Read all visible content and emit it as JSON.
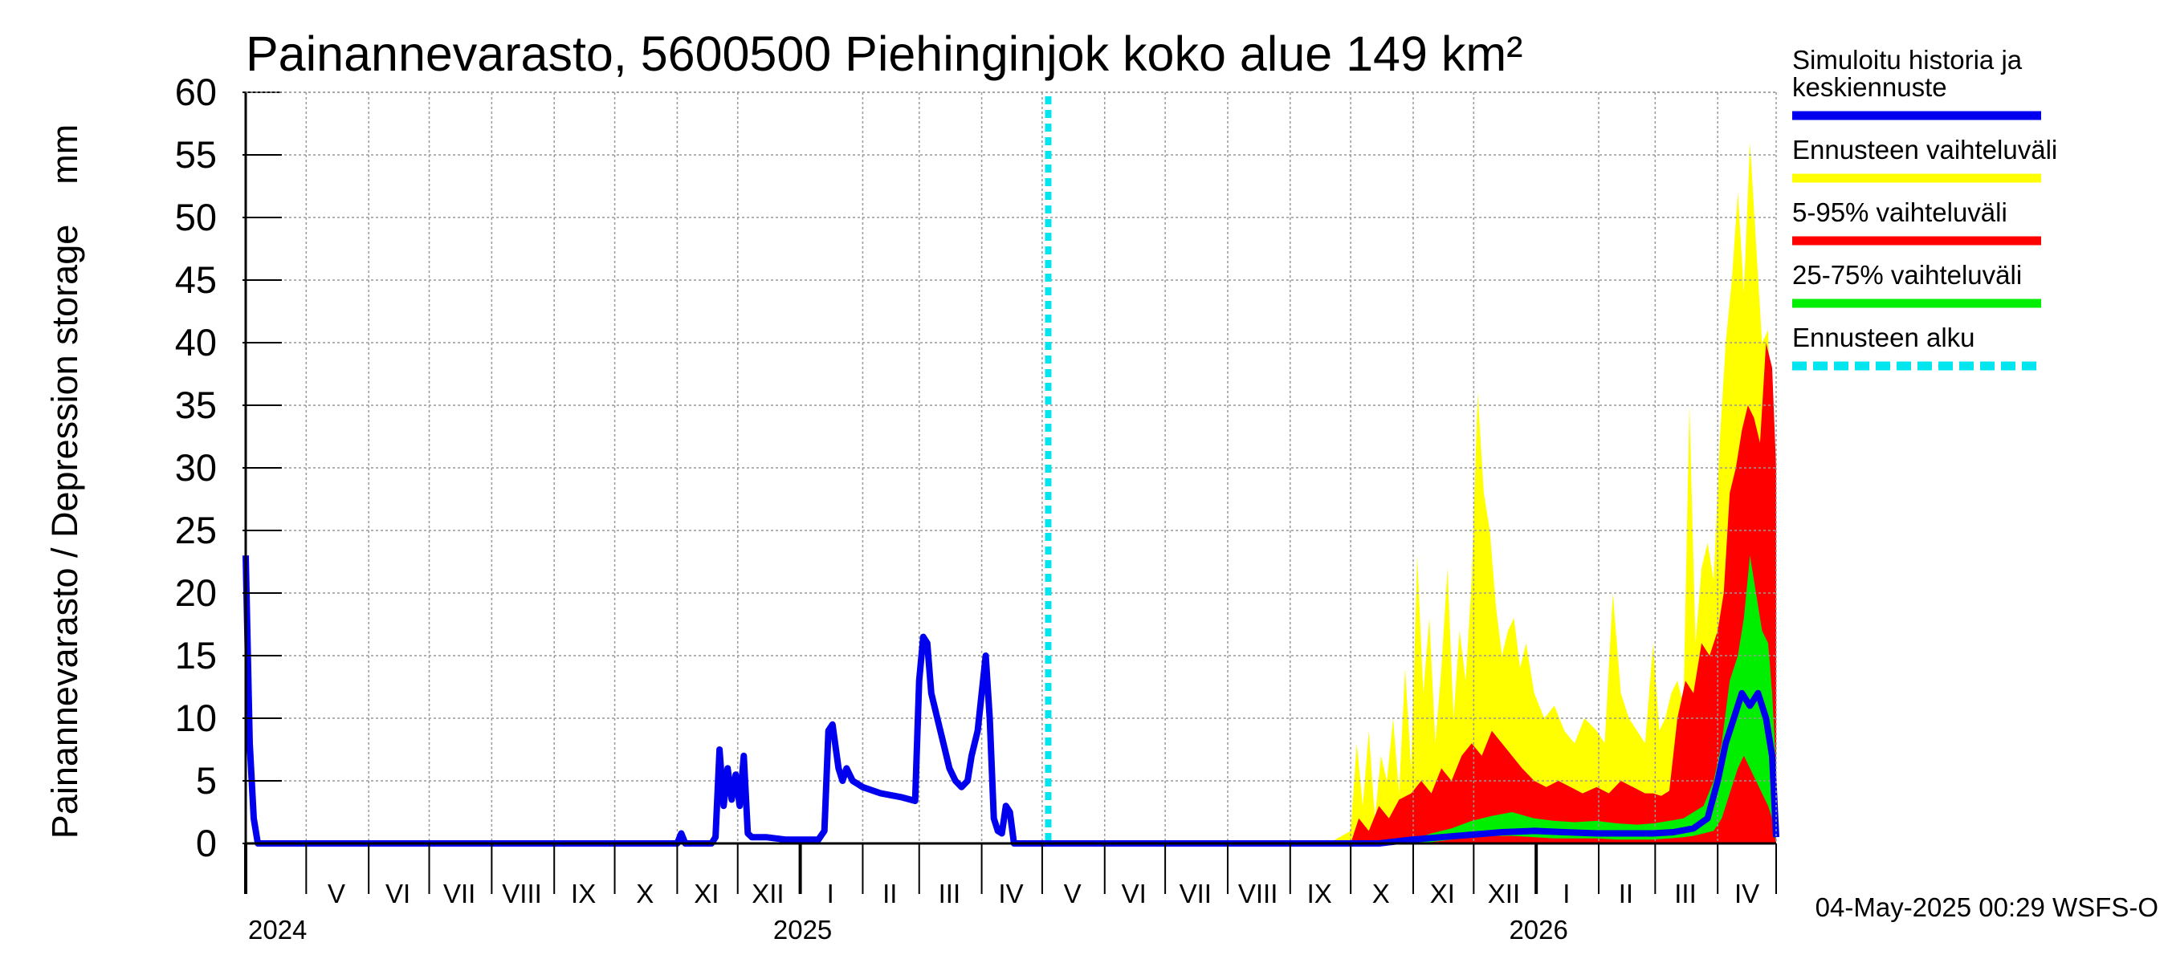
{
  "chart_data": {
    "type": "area",
    "title": "Painannevarasto, 5600500 Piehinginjok koko alue 149 km²",
    "ylabel": "Painannevarasto / Depression storage    mm",
    "ylim": [
      0,
      60
    ],
    "yticks": [
      0,
      5,
      10,
      15,
      20,
      25,
      30,
      35,
      40,
      45,
      50,
      55,
      60
    ],
    "xlim": [
      "2024-04-01",
      "2026-04-30"
    ],
    "grid": true,
    "legend_position": "right",
    "months": [
      {
        "label": "V",
        "start": "2024-05-01",
        "end": "2024-05-31"
      },
      {
        "label": "VI",
        "start": "2024-06-01",
        "end": "2024-06-30"
      },
      {
        "label": "VII",
        "start": "2024-07-01",
        "end": "2024-07-31"
      },
      {
        "label": "VIII",
        "start": "2024-08-01",
        "end": "2024-08-31"
      },
      {
        "label": "IX",
        "start": "2024-09-01",
        "end": "2024-09-30"
      },
      {
        "label": "X",
        "start": "2024-10-01",
        "end": "2024-10-31"
      },
      {
        "label": "XI",
        "start": "2024-11-01",
        "end": "2024-11-30"
      },
      {
        "label": "XII",
        "start": "2024-12-01",
        "end": "2024-12-31"
      },
      {
        "label": "I",
        "start": "2025-01-01",
        "end": "2025-01-31"
      },
      {
        "label": "II",
        "start": "2025-02-01",
        "end": "2025-02-28"
      },
      {
        "label": "III",
        "start": "2025-03-01",
        "end": "2025-03-31"
      },
      {
        "label": "IV",
        "start": "2025-04-01",
        "end": "2025-04-30"
      },
      {
        "label": "V",
        "start": "2025-05-01",
        "end": "2025-05-31"
      },
      {
        "label": "VI",
        "start": "2025-06-01",
        "end": "2025-06-30"
      },
      {
        "label": "VII",
        "start": "2025-07-01",
        "end": "2025-07-31"
      },
      {
        "label": "VIII",
        "start": "2025-08-01",
        "end": "2025-08-31"
      },
      {
        "label": "IX",
        "start": "2025-09-01",
        "end": "2025-09-30"
      },
      {
        "label": "X",
        "start": "2025-10-01",
        "end": "2025-10-31"
      },
      {
        "label": "XI",
        "start": "2025-11-01",
        "end": "2025-11-30"
      },
      {
        "label": "XII",
        "start": "2025-12-01",
        "end": "2025-12-31"
      },
      {
        "label": "I",
        "start": "2026-01-01",
        "end": "2026-01-31"
      },
      {
        "label": "II",
        "start": "2026-02-01",
        "end": "2026-02-28"
      },
      {
        "label": "III",
        "start": "2026-03-01",
        "end": "2026-03-31"
      },
      {
        "label": "IV",
        "start": "2026-04-01",
        "end": "2026-04-30"
      }
    ],
    "years": [
      {
        "label": "2024",
        "date": "2024-04-01"
      },
      {
        "label": "2025",
        "date": "2025-01-01"
      },
      {
        "label": "2026",
        "date": "2026-01-01"
      }
    ],
    "forecast_start": "2025-05-04",
    "series": [
      {
        "name": "Ennusteen vaihteluväli",
        "kind": "band",
        "color": "#ffff00",
        "x": [
          "2025-09-20",
          "2025-10-01",
          "2025-10-04",
          "2025-10-07",
          "2025-10-10",
          "2025-10-13",
          "2025-10-16",
          "2025-10-19",
          "2025-10-22",
          "2025-10-25",
          "2025-10-28",
          "2025-10-31",
          "2025-11-03",
          "2025-11-06",
          "2025-11-09",
          "2025-11-12",
          "2025-11-15",
          "2025-11-18",
          "2025-11-21",
          "2025-11-24",
          "2025-11-27",
          "2025-11-30",
          "2025-12-03",
          "2025-12-06",
          "2025-12-09",
          "2025-12-12",
          "2025-12-15",
          "2025-12-18",
          "2025-12-21",
          "2025-12-24",
          "2025-12-27",
          "2025-12-31",
          "2026-01-05",
          "2026-01-10",
          "2026-01-15",
          "2026-01-20",
          "2026-01-25",
          "2026-01-31",
          "2026-02-04",
          "2026-02-08",
          "2026-02-12",
          "2026-02-16",
          "2026-02-20",
          "2026-02-24",
          "2026-02-28",
          "2026-03-03",
          "2026-03-06",
          "2026-03-09",
          "2026-03-12",
          "2026-03-15",
          "2026-03-18",
          "2026-03-21",
          "2026-03-24",
          "2026-03-27",
          "2026-03-30",
          "2026-04-02",
          "2026-04-05",
          "2026-04-08",
          "2026-04-11",
          "2026-04-14",
          "2026-04-17",
          "2026-04-20",
          "2026-04-23",
          "2026-04-26",
          "2026-04-28",
          "2026-04-30"
        ],
        "upper": [
          0,
          1,
          8,
          3,
          9,
          2,
          7,
          5,
          10,
          4,
          14,
          6,
          23,
          12,
          18,
          8,
          14,
          22,
          10,
          17,
          13,
          21,
          36,
          28,
          25,
          19,
          15,
          17,
          18,
          14,
          16,
          12,
          10,
          11,
          9,
          8,
          10,
          9,
          8,
          20,
          12,
          10,
          9,
          8,
          16,
          9,
          10,
          12,
          13,
          11,
          35,
          16,
          22,
          24,
          21,
          32,
          40,
          45,
          52,
          44,
          56,
          48,
          40,
          41,
          30,
          5
        ],
        "lower": [
          0,
          0,
          0,
          0,
          0,
          0,
          0,
          0,
          0,
          0,
          0,
          0,
          0,
          0,
          0,
          0,
          0,
          0,
          0,
          0,
          0,
          0,
          0,
          0,
          0,
          0,
          0,
          0,
          0,
          0,
          0,
          0,
          0,
          0,
          0,
          0,
          0,
          0,
          0,
          0,
          0,
          0,
          0,
          0,
          0,
          0,
          0,
          0,
          0,
          0,
          0,
          0,
          0,
          0,
          0,
          0,
          0,
          0,
          0,
          0,
          0,
          0,
          0,
          0,
          0,
          0
        ]
      },
      {
        "name": "5-95% vaihteluväli",
        "kind": "band",
        "color": "#ff0000",
        "x": [
          "2025-10-01",
          "2025-10-05",
          "2025-10-10",
          "2025-10-15",
          "2025-10-20",
          "2025-10-25",
          "2025-10-31",
          "2025-11-05",
          "2025-11-10",
          "2025-11-15",
          "2025-11-20",
          "2025-11-25",
          "2025-11-30",
          "2025-12-05",
          "2025-12-10",
          "2025-12-15",
          "2025-12-20",
          "2025-12-25",
          "2025-12-31",
          "2026-01-06",
          "2026-01-12",
          "2026-01-18",
          "2026-01-24",
          "2026-01-31",
          "2026-02-06",
          "2026-02-12",
          "2026-02-18",
          "2026-02-24",
          "2026-02-28",
          "2026-03-04",
          "2026-03-08",
          "2026-03-12",
          "2026-03-16",
          "2026-03-20",
          "2026-03-24",
          "2026-03-28",
          "2026-04-01",
          "2026-04-04",
          "2026-04-07",
          "2026-04-10",
          "2026-04-13",
          "2026-04-16",
          "2026-04-19",
          "2026-04-22",
          "2026-04-25",
          "2026-04-28",
          "2026-04-30"
        ],
        "upper": [
          0,
          2,
          1,
          3,
          2,
          3.5,
          4,
          5,
          4,
          6,
          5,
          7,
          8,
          7,
          9,
          8,
          7,
          6,
          5,
          4.5,
          5,
          4.5,
          4,
          4.5,
          4,
          5,
          4.5,
          4,
          4,
          3.8,
          4.2,
          10,
          13,
          12,
          16,
          15,
          17,
          20,
          28,
          30,
          33,
          35,
          34,
          32,
          40,
          38,
          30
        ],
        "lower": [
          0,
          0,
          0,
          0,
          0,
          0,
          0,
          0,
          0,
          0,
          0,
          0,
          0,
          0,
          0,
          0,
          0,
          0,
          0,
          0,
          0,
          0,
          0,
          0,
          0,
          0,
          0,
          0,
          0,
          0,
          0,
          0,
          0,
          0,
          0,
          0,
          0,
          0,
          0,
          0,
          0,
          0,
          0,
          0,
          0,
          0,
          0
        ]
      },
      {
        "name": "25-75% vaihteluväli",
        "kind": "band",
        "color": "#00ee00",
        "x": [
          "2025-10-20",
          "2025-10-31",
          "2025-11-10",
          "2025-11-20",
          "2025-11-30",
          "2025-12-10",
          "2025-12-20",
          "2025-12-31",
          "2026-01-10",
          "2026-01-20",
          "2026-01-31",
          "2026-02-10",
          "2026-02-20",
          "2026-02-28",
          "2026-03-08",
          "2026-03-15",
          "2026-03-20",
          "2026-03-25",
          "2026-03-30",
          "2026-04-03",
          "2026-04-07",
          "2026-04-11",
          "2026-04-14",
          "2026-04-17",
          "2026-04-20",
          "2026-04-23",
          "2026-04-26",
          "2026-04-28",
          "2026-04-30"
        ],
        "upper": [
          0.1,
          0.3,
          0.8,
          1.2,
          1.8,
          2.2,
          2.5,
          2.0,
          1.8,
          1.7,
          1.8,
          1.6,
          1.5,
          1.6,
          1.8,
          2.0,
          2.5,
          3.0,
          5.0,
          8,
          13,
          15,
          18,
          23,
          20,
          17,
          16,
          12,
          6
        ],
        "lower": [
          0,
          0,
          0.1,
          0.3,
          0.5,
          0.6,
          0.6,
          0.5,
          0.4,
          0.4,
          0.4,
          0.3,
          0.3,
          0.3,
          0.4,
          0.5,
          0.6,
          0.8,
          1.0,
          2,
          4,
          6,
          7,
          6,
          5,
          4,
          3,
          2,
          0
        ]
      },
      {
        "name": "Simuloitu historia ja keskiennuste",
        "kind": "line",
        "color": "#0000ee",
        "x": [
          "2024-04-01",
          "2024-04-03",
          "2024-04-05",
          "2024-04-07",
          "2024-04-09",
          "2024-11-01",
          "2024-11-03",
          "2024-11-05",
          "2024-11-08",
          "2024-11-15",
          "2024-11-18",
          "2024-11-20",
          "2024-11-22",
          "2024-11-24",
          "2024-11-26",
          "2024-11-28",
          "2024-11-30",
          "2024-12-02",
          "2024-12-04",
          "2024-12-06",
          "2024-12-08",
          "2024-12-10",
          "2024-12-12",
          "2024-12-15",
          "2024-12-25",
          "2025-01-10",
          "2025-01-13",
          "2025-01-15",
          "2025-01-17",
          "2025-01-20",
          "2025-01-22",
          "2025-01-24",
          "2025-01-27",
          "2025-02-01",
          "2025-02-10",
          "2025-02-20",
          "2025-02-27",
          "2025-03-01",
          "2025-03-03",
          "2025-03-05",
          "2025-03-07",
          "2025-03-10",
          "2025-03-13",
          "2025-03-16",
          "2025-03-19",
          "2025-03-22",
          "2025-03-25",
          "2025-03-27",
          "2025-03-30",
          "2025-04-01",
          "2025-04-03",
          "2025-04-05",
          "2025-04-07",
          "2025-04-09",
          "2025-04-11",
          "2025-04-13",
          "2025-04-15",
          "2025-04-17",
          "2025-04-19",
          "2025-04-21",
          "2025-04-23",
          "2025-04-25",
          "2025-05-04",
          "2025-10-15",
          "2025-10-31",
          "2025-11-15",
          "2025-11-30",
          "2025-12-15",
          "2025-12-31",
          "2026-01-15",
          "2026-01-31",
          "2026-02-15",
          "2026-02-28",
          "2026-03-10",
          "2026-03-20",
          "2026-03-27",
          "2026-04-01",
          "2026-04-05",
          "2026-04-09",
          "2026-04-13",
          "2026-04-17",
          "2026-04-21",
          "2026-04-25",
          "2026-04-28",
          "2026-04-30"
        ],
        "y": [
          23,
          8,
          2,
          0,
          0,
          0,
          0.8,
          0,
          0,
          0,
          0,
          0.5,
          7.5,
          3,
          6,
          3.5,
          5.5,
          3,
          7,
          0.8,
          0.5,
          0.5,
          0.5,
          0.5,
          0.3,
          0.3,
          1,
          9,
          9.5,
          6,
          5,
          6,
          5,
          4.5,
          4,
          3.7,
          3.4,
          13,
          16.5,
          16,
          12,
          10,
          8,
          6,
          5,
          4.5,
          5,
          7,
          9,
          12,
          15,
          10,
          2,
          1,
          0.8,
          3,
          2.5,
          0,
          0,
          0,
          0,
          0,
          0,
          0,
          0.3,
          0.5,
          0.7,
          0.9,
          1.0,
          0.9,
          0.8,
          0.8,
          0.8,
          0.9,
          1.2,
          2.0,
          5,
          8,
          10,
          12,
          11,
          12,
          10,
          7,
          0.5
        ]
      },
      {
        "name": "Ennusteen alku",
        "kind": "vline",
        "color": "#00e5ee"
      }
    ]
  },
  "legend": [
    {
      "lines": [
        "Simuloitu historia ja",
        "keskiennuste"
      ],
      "color": "#0000ee",
      "style": "solid"
    },
    {
      "lines": [
        "Ennusteen vaihteluväli"
      ],
      "color": "#ffff00",
      "style": "solid"
    },
    {
      "lines": [
        "5-95% vaihteluväli"
      ],
      "color": "#ff0000",
      "style": "solid"
    },
    {
      "lines": [
        "25-75% vaihteluväli"
      ],
      "color": "#00ee00",
      "style": "solid"
    },
    {
      "lines": [
        "Ennusteen alku"
      ],
      "color": "#00e5ee",
      "style": "dashed"
    }
  ],
  "timestamp": "04-May-2025 00:29 WSFS-O"
}
